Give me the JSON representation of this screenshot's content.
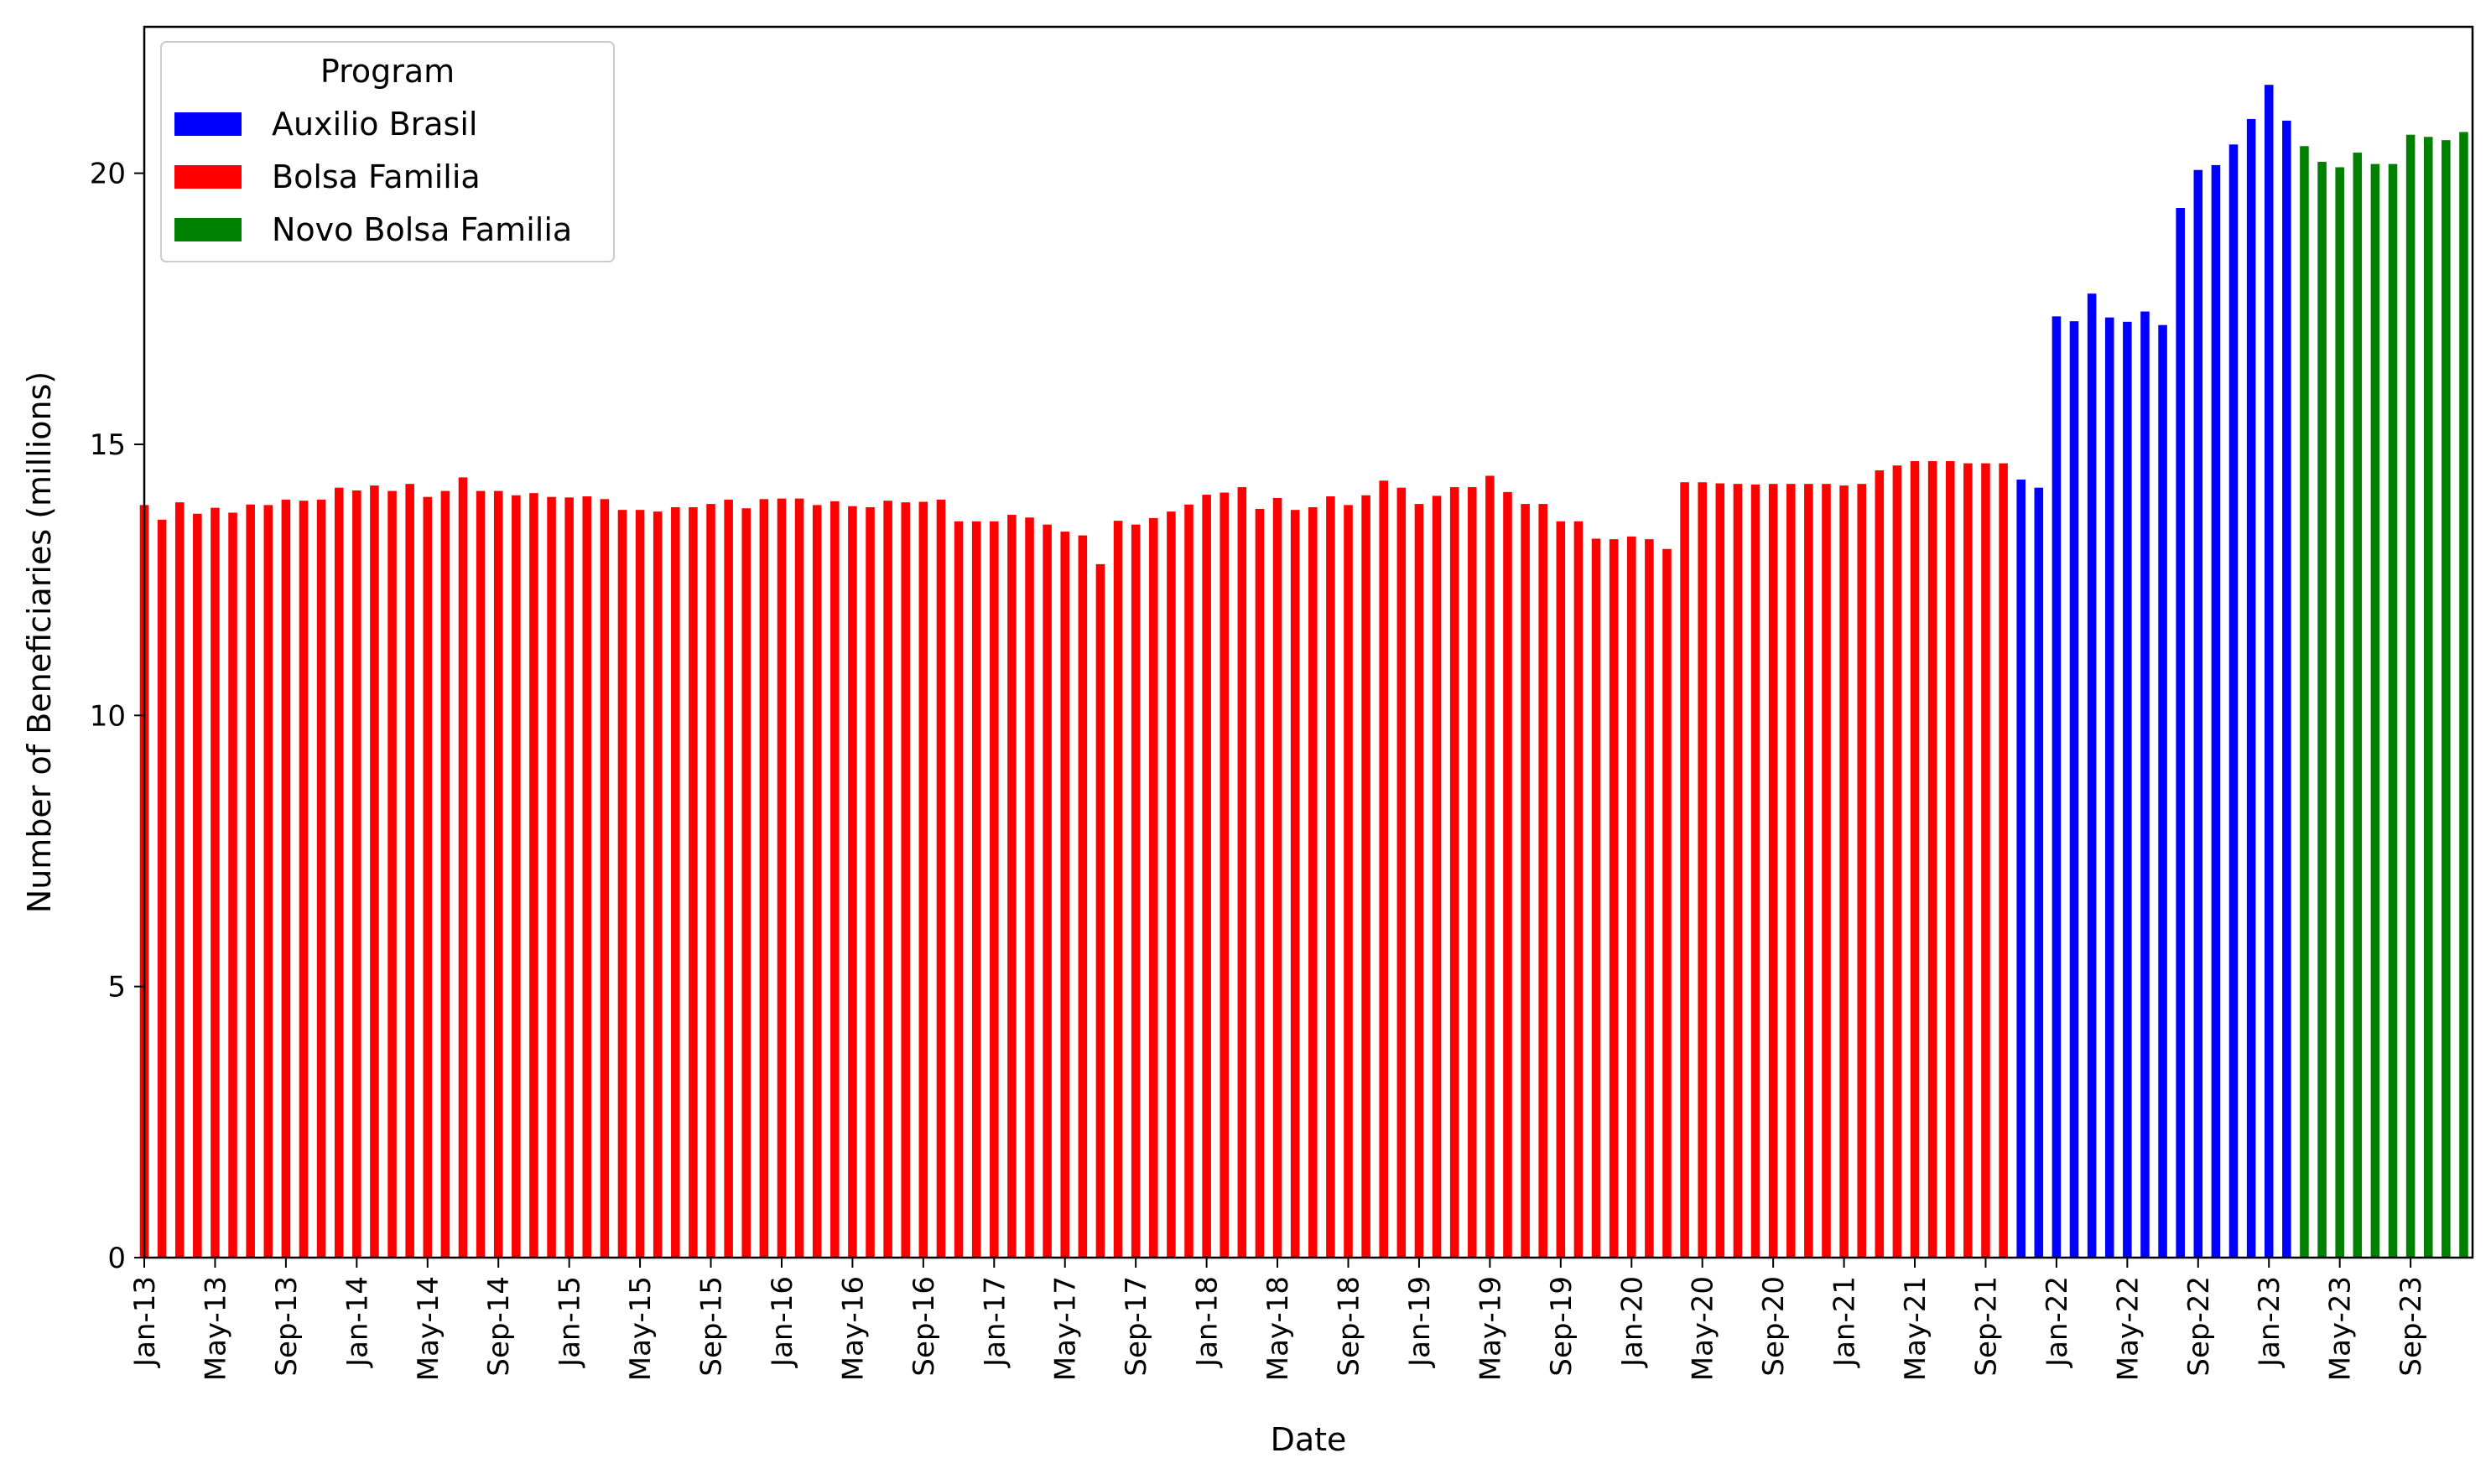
{
  "chart_data": {
    "type": "bar",
    "title": "",
    "xlabel": "Date",
    "ylabel": "Number of Beneficiaries (millions)",
    "ylim": [
      0,
      22.7
    ],
    "yticks": [
      0,
      5,
      10,
      15,
      20
    ],
    "grid": false,
    "legend": {
      "title": "Program",
      "placement": "top-left",
      "entries": [
        {
          "name": "Auxilio Brasil",
          "color": "#0000ff"
        },
        {
          "name": "Bolsa Familia",
          "color": "#ff0000"
        },
        {
          "name": "Novo Bolsa Familia",
          "color": "#008000"
        }
      ]
    },
    "x_tick_labels": [
      "Jan-13",
      "May-13",
      "Sep-13",
      "Jan-14",
      "May-14",
      "Sep-14",
      "Jan-15",
      "May-15",
      "Sep-15",
      "Jan-16",
      "May-16",
      "Sep-16",
      "Jan-17",
      "May-17",
      "Sep-17",
      "Jan-18",
      "May-18",
      "Sep-18",
      "Jan-19",
      "May-19",
      "Sep-19",
      "Jan-20",
      "May-20",
      "Sep-20",
      "Jan-21",
      "May-21",
      "Sep-21",
      "Jan-22",
      "May-22",
      "Sep-22",
      "Jan-23",
      "May-23",
      "Sep-23"
    ],
    "series": [
      {
        "name": "Bolsa Familia",
        "color": "#ff0000",
        "start": "Jan-13",
        "values": [
          13.88,
          13.61,
          13.93,
          13.72,
          13.83,
          13.74,
          13.89,
          13.88,
          13.98,
          13.96,
          13.98,
          14.2,
          14.15,
          14.24,
          14.14,
          14.27,
          14.03,
          14.14,
          14.39,
          14.14,
          14.14,
          14.06,
          14.1,
          14.03,
          14.02,
          14.04,
          13.99,
          13.79,
          13.79,
          13.76,
          13.84,
          13.84,
          13.9,
          13.98,
          13.82,
          13.99,
          14.0,
          14.0,
          13.88,
          13.95,
          13.86,
          13.84,
          13.96,
          13.93,
          13.94,
          13.98,
          13.58,
          13.58,
          13.58,
          13.7,
          13.65,
          13.52,
          13.39,
          13.32,
          12.79,
          13.59,
          13.52,
          13.64,
          13.76,
          13.89,
          14.07,
          14.11,
          14.21,
          13.81,
          14.01,
          13.79,
          13.84,
          14.04,
          13.88,
          14.06,
          14.33,
          14.2,
          13.9,
          14.05,
          14.21,
          14.21,
          14.42,
          14.12,
          13.9,
          13.9,
          13.58,
          13.58,
          13.26,
          13.25,
          13.3,
          13.25,
          13.07,
          14.3,
          14.3,
          14.28,
          14.27,
          14.26,
          14.27,
          14.27,
          14.27,
          14.27,
          14.24,
          14.27,
          14.52,
          14.61,
          14.69,
          14.69,
          14.69,
          14.65,
          14.65,
          14.65
        ]
      },
      {
        "name": "Auxilio Brasil",
        "color": "#0000ff",
        "start": "Nov-21",
        "values": [
          14.35,
          14.2,
          17.36,
          17.27,
          17.78,
          17.34,
          17.26,
          17.45,
          17.2,
          19.36,
          20.06,
          20.15,
          20.53,
          21.0,
          21.63,
          20.97
        ]
      },
      {
        "name": "Novo Bolsa Familia",
        "color": "#008000",
        "start": "Mar-23",
        "values": [
          20.5,
          20.21,
          20.11,
          20.38,
          20.17,
          20.17,
          20.71,
          20.67,
          20.61,
          20.76
        ]
      }
    ]
  }
}
